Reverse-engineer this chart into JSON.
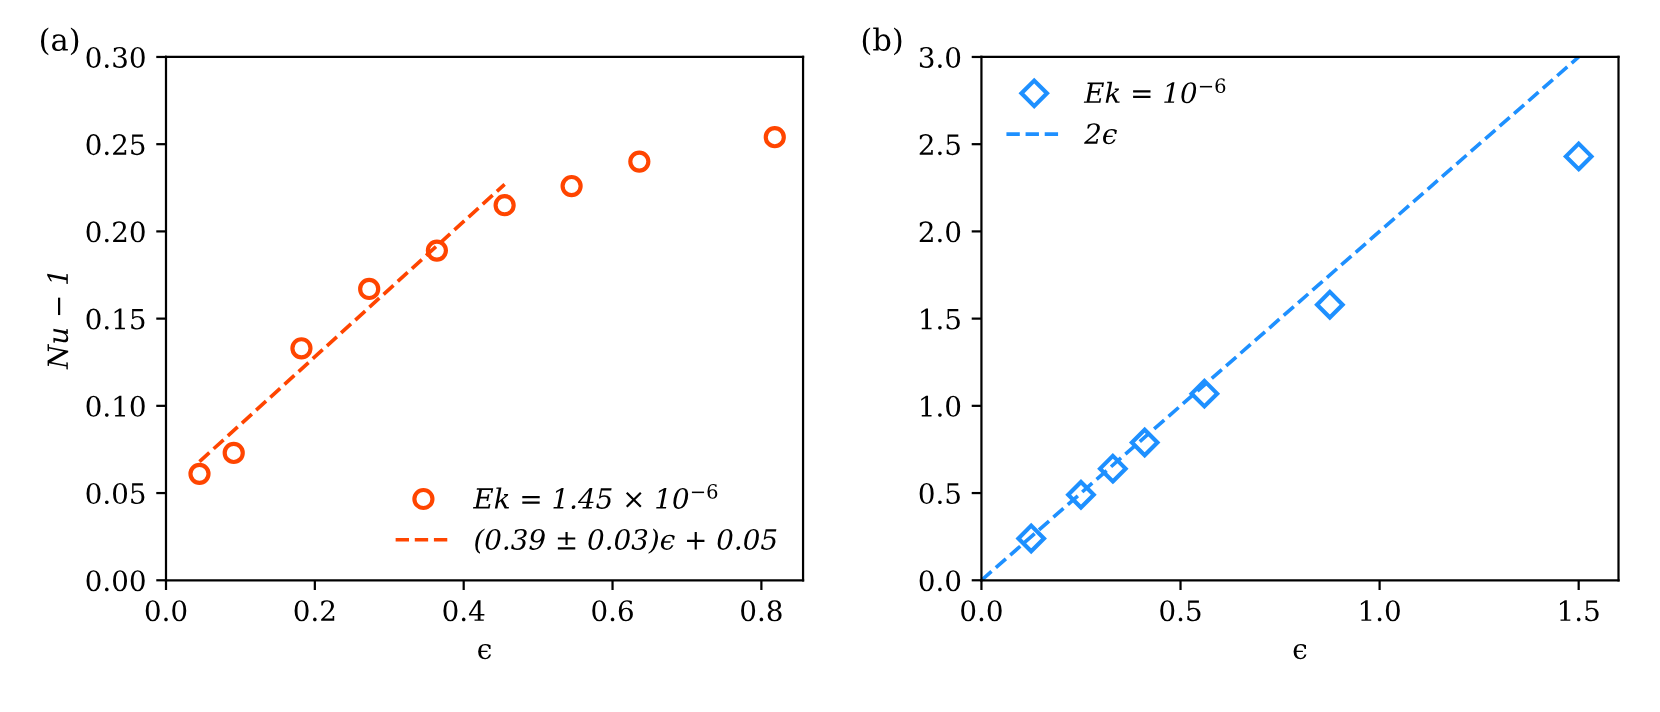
{
  "chart_data": [
    {
      "type": "scatter",
      "xlabel": "ϵ",
      "ylabel": "Nu − 1",
      "annotations": [
        "(a)"
      ],
      "legend": "bottom right",
      "grid": false,
      "xlim": [
        0.0,
        0.856
      ],
      "ylim": [
        0.0,
        0.3
      ],
      "xticks": [
        {
          "value": 0.0,
          "label": "0.0"
        },
        {
          "value": 0.2,
          "label": "0.2"
        },
        {
          "value": 0.4,
          "label": "0.4"
        },
        {
          "value": 0.6,
          "label": "0.6"
        },
        {
          "value": 0.8,
          "label": "0.8"
        }
      ],
      "yticks": [
        {
          "value": 0.0,
          "label": "0.00"
        },
        {
          "value": 0.05,
          "label": "0.05"
        },
        {
          "value": 0.1,
          "label": "0.10"
        },
        {
          "value": 0.15,
          "label": "0.15"
        },
        {
          "value": 0.2,
          "label": "0.20"
        },
        {
          "value": 0.25,
          "label": "0.25"
        },
        {
          "value": 0.3,
          "label": "0.30"
        }
      ],
      "series": [
        {
          "name": "Ek = 1.45 × 10$^{−6}$",
          "color": "#ff4500",
          "marker": "circle",
          "x": [
            0.045,
            0.091,
            0.182,
            0.273,
            0.364,
            0.455,
            0.545,
            0.636,
            0.818
          ],
          "values": [
            0.061,
            0.073,
            0.133,
            0.167,
            0.189,
            0.215,
            0.226,
            0.24,
            0.254
          ]
        },
        {
          "type": "line",
          "name": "(0.39 ± 0.03)ϵ + 0.05",
          "color": "#ff4500",
          "line_style": "dashed",
          "x": [
            0.045,
            0.455
          ],
          "values": [
            0.068,
            0.227
          ]
        }
      ]
    },
    {
      "type": "scatter",
      "xlabel": "ϵ",
      "annotations": [
        "(b)"
      ],
      "legend": "top left",
      "grid": false,
      "xlim": [
        0.0,
        1.6
      ],
      "ylim": [
        0.0,
        3.0
      ],
      "xticks": [
        {
          "value": 0.0,
          "label": "0.0"
        },
        {
          "value": 0.5,
          "label": "0.5"
        },
        {
          "value": 1.0,
          "label": "1.0"
        },
        {
          "value": 1.5,
          "label": "1.5"
        }
      ],
      "yticks": [
        {
          "value": 0.0,
          "label": "0.0"
        },
        {
          "value": 0.5,
          "label": "0.5"
        },
        {
          "value": 1.0,
          "label": "1.0"
        },
        {
          "value": 1.5,
          "label": "1.5"
        },
        {
          "value": 2.0,
          "label": "2.0"
        },
        {
          "value": 2.5,
          "label": "2.5"
        },
        {
          "value": 3.0,
          "label": "3.0"
        }
      ],
      "series": [
        {
          "name": "Ek = 10$^{−6}$",
          "color": "#1e90ff",
          "marker": "diamond",
          "x": [
            0.125,
            0.25,
            0.33,
            0.41,
            0.56,
            0.875,
            1.5
          ],
          "values": [
            0.24,
            0.49,
            0.64,
            0.79,
            1.07,
            1.58,
            2.43
          ]
        },
        {
          "type": "line",
          "name": "2ϵ",
          "color": "#1e90ff",
          "line_style": "dashed",
          "x": [
            0.0,
            1.5
          ],
          "values": [
            0.0,
            3.0
          ]
        }
      ]
    }
  ]
}
